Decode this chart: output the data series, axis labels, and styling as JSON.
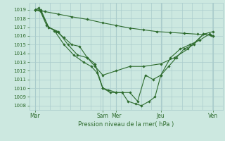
{
  "background_color": "#cce8e0",
  "grid_color": "#aacccc",
  "line_color": "#2d6b2d",
  "xlabel": "Pression niveau de la mer( hPa )",
  "ylim": [
    1007.5,
    1019.8
  ],
  "yticks": [
    1008,
    1009,
    1010,
    1011,
    1012,
    1013,
    1014,
    1015,
    1016,
    1017,
    1018,
    1019
  ],
  "xlim": [
    0,
    10.0
  ],
  "day_labels": [
    "Mar",
    "Sam",
    "Mer",
    "Jeu",
    "Ven"
  ],
  "day_positions": [
    0.3,
    3.8,
    4.5,
    6.8,
    9.5
  ],
  "vline_positions": [
    0.3,
    3.8,
    4.5,
    6.8,
    9.5
  ],
  "lines": [
    {
      "x": [
        0.3,
        0.8,
        1.5,
        2.2,
        3.0,
        3.8,
        4.5,
        5.2,
        5.9,
        6.6,
        7.3,
        8.0,
        8.7,
        9.4
      ],
      "y": [
        1019.0,
        1018.8,
        1018.5,
        1018.2,
        1017.9,
        1017.5,
        1017.2,
        1016.9,
        1016.7,
        1016.5,
        1016.4,
        1016.3,
        1016.2,
        1016.1
      ]
    },
    {
      "x": [
        0.3,
        0.6,
        1.0,
        1.4,
        1.8,
        2.2,
        2.6,
        3.0,
        3.4,
        3.8,
        4.5,
        5.2,
        5.9,
        6.8,
        7.5,
        8.2,
        9.0,
        9.5
      ],
      "y": [
        1019.0,
        1018.8,
        1017.0,
        1016.5,
        1015.8,
        1015.0,
        1014.8,
        1013.5,
        1012.5,
        1011.5,
        1012.0,
        1012.5,
        1012.5,
        1012.8,
        1013.5,
        1014.5,
        1016.2,
        1016.0
      ]
    },
    {
      "x": [
        0.3,
        0.6,
        1.0,
        1.5,
        2.0,
        2.5,
        3.0,
        3.4,
        3.8,
        4.2,
        4.5,
        4.8,
        5.2,
        5.6,
        6.0,
        6.4,
        6.8,
        7.3,
        7.8,
        8.3,
        8.8,
        9.3,
        9.5
      ],
      "y": [
        1019.0,
        1019.0,
        1017.0,
        1016.5,
        1015.0,
        1013.8,
        1013.5,
        1012.8,
        1010.0,
        1009.5,
        1009.5,
        1009.5,
        1009.5,
        1008.5,
        1011.5,
        1011.0,
        1011.5,
        1013.5,
        1014.5,
        1015.0,
        1015.5,
        1016.2,
        1016.0
      ]
    },
    {
      "x": [
        0.3,
        0.5,
        0.9,
        1.3,
        1.8,
        2.3,
        2.8,
        3.2,
        3.5,
        3.8,
        4.1,
        4.5,
        4.8,
        5.1,
        5.5,
        5.8,
        6.2,
        6.5,
        6.8,
        7.2,
        7.6,
        8.0,
        8.5,
        9.0,
        9.5
      ],
      "y": [
        1019.0,
        1019.2,
        1017.2,
        1016.6,
        1015.0,
        1013.8,
        1013.0,
        1012.5,
        1011.8,
        1010.0,
        1009.8,
        1009.5,
        1009.5,
        1008.5,
        1008.2,
        1008.0,
        1008.5,
        1009.0,
        1011.5,
        1012.5,
        1013.5,
        1014.5,
        1015.0,
        1016.2,
        1016.5
      ]
    }
  ]
}
